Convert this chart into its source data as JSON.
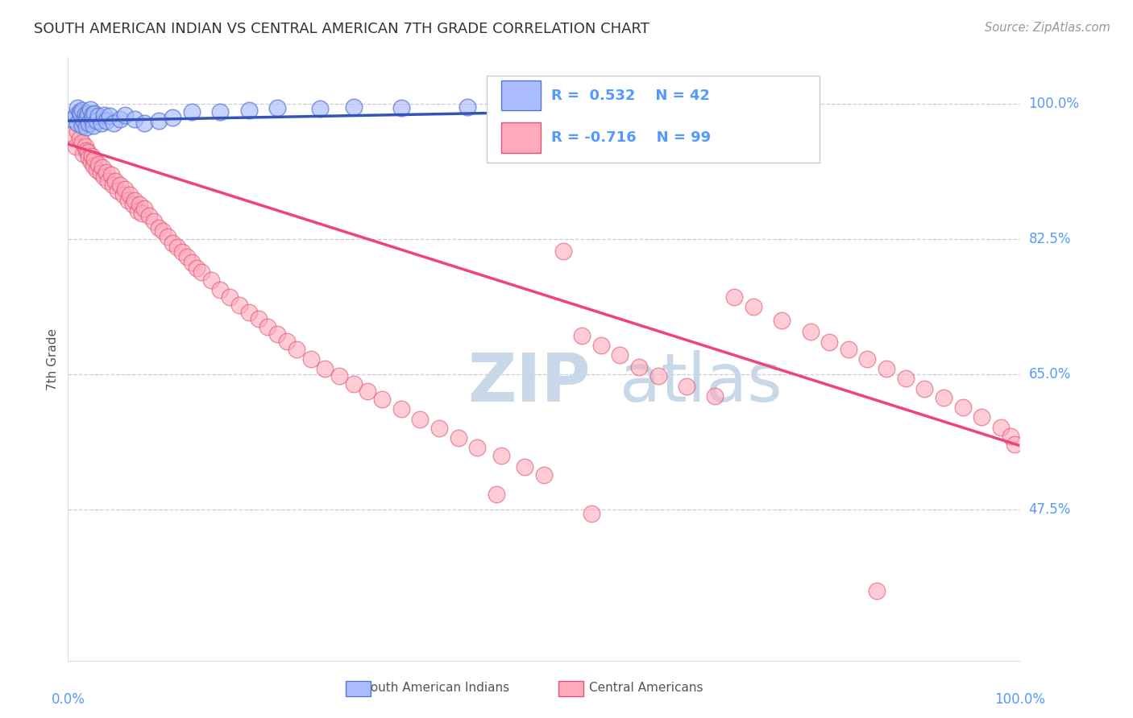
{
  "title": "SOUTH AMERICAN INDIAN VS CENTRAL AMERICAN 7TH GRADE CORRELATION CHART",
  "source": "Source: ZipAtlas.com",
  "ylabel": "7th Grade",
  "legend_blue_label": "South American Indians",
  "legend_pink_label": "Central Americans",
  "ytick_labels": [
    "100.0%",
    "82.5%",
    "65.0%",
    "47.5%"
  ],
  "ytick_values": [
    1.0,
    0.825,
    0.65,
    0.475
  ],
  "xlim": [
    0.0,
    1.0
  ],
  "ylim": [
    0.28,
    1.06
  ],
  "blue_color": "#aabbff",
  "blue_edge_color": "#5577cc",
  "pink_color": "#ffaabb",
  "pink_edge_color": "#dd5577",
  "blue_line_color": "#3355bb",
  "pink_line_color": "#ee4477",
  "grid_color": "#ccccdd",
  "title_color": "#333333",
  "source_color": "#999999",
  "axis_label_color": "#555555",
  "right_tick_color": "#5599ff",
  "watermark_zip_color": "#c8d8e8",
  "watermark_atlas_color": "#c8d8e8",
  "blue_scatter_x": [
    0.005,
    0.008,
    0.01,
    0.01,
    0.012,
    0.013,
    0.015,
    0.015,
    0.017,
    0.018,
    0.019,
    0.02,
    0.021,
    0.022,
    0.023,
    0.025,
    0.026,
    0.027,
    0.028,
    0.03,
    0.032,
    0.035,
    0.038,
    0.04,
    0.044,
    0.048,
    0.055,
    0.06,
    0.07,
    0.08,
    0.095,
    0.11,
    0.13,
    0.16,
    0.19,
    0.22,
    0.265,
    0.3,
    0.35,
    0.42,
    0.54,
    0.68
  ],
  "blue_scatter_y": [
    0.98,
    0.985,
    0.975,
    0.995,
    0.99,
    0.988,
    0.972,
    0.992,
    0.978,
    0.986,
    0.97,
    0.982,
    0.988,
    0.975,
    0.993,
    0.98,
    0.986,
    0.972,
    0.988,
    0.978,
    0.984,
    0.975,
    0.985,
    0.978,
    0.984,
    0.975,
    0.98,
    0.985,
    0.98,
    0.975,
    0.978,
    0.982,
    0.99,
    0.99,
    0.992,
    0.995,
    0.994,
    0.996,
    0.995,
    0.996,
    0.996,
    0.996
  ],
  "pink_scatter_x": [
    0.005,
    0.008,
    0.01,
    0.012,
    0.015,
    0.016,
    0.018,
    0.019,
    0.021,
    0.022,
    0.024,
    0.025,
    0.027,
    0.028,
    0.03,
    0.032,
    0.034,
    0.036,
    0.038,
    0.04,
    0.042,
    0.045,
    0.047,
    0.05,
    0.052,
    0.055,
    0.058,
    0.06,
    0.063,
    0.065,
    0.068,
    0.07,
    0.073,
    0.075,
    0.078,
    0.08,
    0.085,
    0.09,
    0.095,
    0.1,
    0.105,
    0.11,
    0.115,
    0.12,
    0.125,
    0.13,
    0.135,
    0.14,
    0.15,
    0.16,
    0.17,
    0.18,
    0.19,
    0.2,
    0.21,
    0.22,
    0.23,
    0.24,
    0.255,
    0.27,
    0.285,
    0.3,
    0.315,
    0.33,
    0.35,
    0.37,
    0.39,
    0.41,
    0.43,
    0.455,
    0.48,
    0.5,
    0.52,
    0.54,
    0.56,
    0.58,
    0.6,
    0.62,
    0.65,
    0.68,
    0.7,
    0.72,
    0.75,
    0.78,
    0.8,
    0.82,
    0.84,
    0.86,
    0.88,
    0.9,
    0.92,
    0.94,
    0.96,
    0.98,
    0.99,
    0.995,
    0.85,
    0.45,
    0.55
  ],
  "pink_scatter_y": [
    0.96,
    0.945,
    0.965,
    0.955,
    0.95,
    0.935,
    0.945,
    0.94,
    0.938,
    0.93,
    0.925,
    0.932,
    0.92,
    0.928,
    0.915,
    0.922,
    0.91,
    0.918,
    0.905,
    0.912,
    0.9,
    0.908,
    0.895,
    0.9,
    0.888,
    0.895,
    0.882,
    0.89,
    0.875,
    0.882,
    0.87,
    0.875,
    0.862,
    0.87,
    0.858,
    0.865,
    0.855,
    0.848,
    0.84,
    0.835,
    0.828,
    0.82,
    0.815,
    0.808,
    0.802,
    0.795,
    0.788,
    0.782,
    0.772,
    0.76,
    0.75,
    0.74,
    0.73,
    0.722,
    0.712,
    0.702,
    0.693,
    0.682,
    0.67,
    0.658,
    0.648,
    0.638,
    0.628,
    0.618,
    0.605,
    0.592,
    0.58,
    0.568,
    0.555,
    0.545,
    0.53,
    0.52,
    0.81,
    0.7,
    0.688,
    0.675,
    0.66,
    0.648,
    0.635,
    0.622,
    0.75,
    0.738,
    0.72,
    0.705,
    0.692,
    0.682,
    0.67,
    0.658,
    0.645,
    0.632,
    0.62,
    0.608,
    0.595,
    0.582,
    0.57,
    0.56,
    0.37,
    0.495,
    0.47
  ],
  "pink_trendline_x0": 0.0,
  "pink_trendline_y0": 0.948,
  "pink_trendline_x1": 1.0,
  "pink_trendline_y1": 0.558,
  "blue_trendline_x0": 0.0,
  "blue_trendline_y0": 0.978,
  "blue_trendline_x1": 0.75,
  "blue_trendline_y1": 0.995
}
